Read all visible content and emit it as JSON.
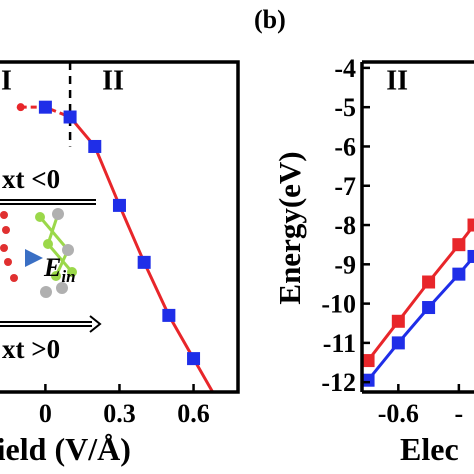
{
  "chart_data": [
    {
      "panel": "a",
      "type": "line",
      "xlabel": "field (V/Å)",
      "ylabel": "",
      "xlim": [
        -0.2,
        0.78
      ],
      "ylim": [
        -12.25,
        -3.85
      ],
      "xticks": [
        {
          "value": 0,
          "label": "0"
        },
        {
          "value": 0.3,
          "label": "0.3"
        },
        {
          "value": 0.6,
          "label": "0.6"
        }
      ],
      "region_labels": [
        {
          "label": "I",
          "x": -0.18,
          "y": -4.55
        },
        {
          "label": "II",
          "x": 0.23,
          "y": -4.55
        }
      ],
      "divider_x": 0.1,
      "annotations": {
        "top": "xt  <0",
        "bottom": "xt  >0",
        "field_symbol": "E",
        "field_subscript": "in"
      },
      "series": [
        {
          "color": "#e8262a",
          "marker_color": "#1f2ee8",
          "x": [
            0,
            0.1,
            0.2,
            0.3,
            0.4,
            0.5,
            0.6,
            0.7
          ],
          "y": [
            -5.0,
            -5.25,
            -6.0,
            -7.5,
            -8.95,
            -10.3,
            -11.4,
            -12.5
          ]
        }
      ],
      "extra_points": [
        {
          "x": -0.1,
          "y": -5.0,
          "color": "#e8262a"
        }
      ]
    },
    {
      "panel": "b",
      "type": "line",
      "title": "(b)",
      "xlabel": "Elec",
      "ylabel": "Energy(eV)",
      "xlim": [
        -0.72,
        -0.35
      ],
      "ylim": [
        -12.25,
        -3.85
      ],
      "yticks": [
        -4,
        -5,
        -6,
        -7,
        -8,
        -9,
        -10,
        -11,
        -12
      ],
      "xticks": [
        {
          "value": -0.6,
          "label": "-0.6"
        },
        {
          "value": -0.4,
          "label": "-"
        }
      ],
      "region_labels": [
        {
          "label": "II",
          "x": -0.64,
          "y": -4.55
        }
      ],
      "series": [
        {
          "color": "#e8262a",
          "marker_color": "#e8262a",
          "x": [
            -0.7,
            -0.6,
            -0.5,
            -0.4,
            -0.35
          ],
          "y": [
            -11.45,
            -10.45,
            -9.45,
            -8.5,
            -8.0
          ]
        },
        {
          "color": "#1f2ee8",
          "marker_color": "#1f2ee8",
          "x": [
            -0.7,
            -0.6,
            -0.5,
            -0.4,
            -0.35
          ],
          "y": [
            -11.95,
            -11.0,
            -10.1,
            -9.25,
            -8.8
          ]
        }
      ]
    }
  ]
}
